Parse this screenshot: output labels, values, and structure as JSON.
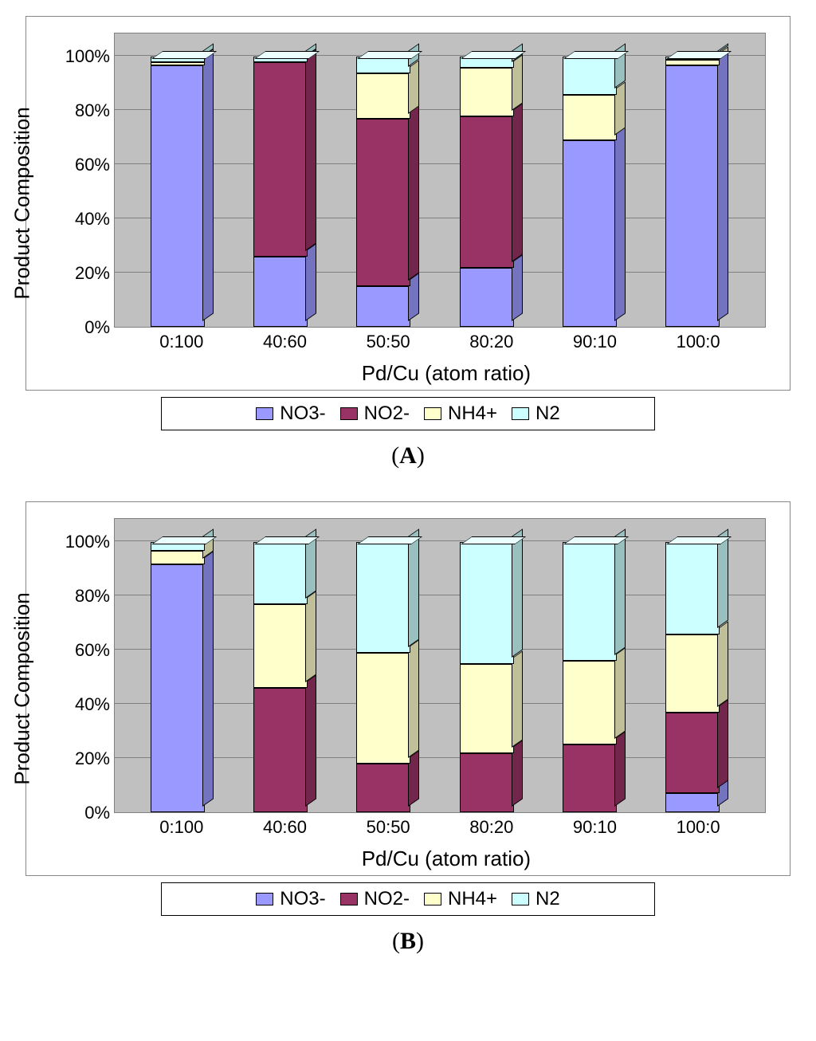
{
  "charts": [
    {
      "id": "A",
      "panel_label": "(A)",
      "ylabel": "Product Composition",
      "xlabel": "Pd/Cu (atom ratio)",
      "ytick_format": "{v}%",
      "yticks": [
        0,
        20,
        40,
        60,
        80,
        100
      ],
      "categories": [
        "0:100",
        "40:60",
        "50:50",
        "80:20",
        "90:10",
        "100:0"
      ],
      "series": [
        {
          "key": "NO3-",
          "label": "NO3-",
          "color": "#9999ff"
        },
        {
          "key": "NO2-",
          "label": "NO2-",
          "color": "#993366"
        },
        {
          "key": "NH4+",
          "label": "NH4+",
          "color": "#ffffcc"
        },
        {
          "key": "N2",
          "label": "N2",
          "color": "#ccffff"
        }
      ],
      "data": [
        {
          "NO3-": 97,
          "NO2-": 0,
          "NH4+": 1,
          "N2": 2
        },
        {
          "NO3-": 26,
          "NO2-": 72,
          "NH4+": 0,
          "N2": 2
        },
        {
          "NO3-": 15,
          "NO2-": 62,
          "NH4+": 17,
          "N2": 6
        },
        {
          "NO3-": 22,
          "NO2-": 56,
          "NH4+": 18,
          "N2": 4
        },
        {
          "NO3-": 69,
          "NO2-": 0,
          "NH4+": 17,
          "N2": 14
        },
        {
          "NO3-": 97,
          "NO2-": 0,
          "NH4+": 2,
          "N2": 1
        }
      ],
      "plot_bg": "#c0c0c0",
      "grid_color": "#808080",
      "label_fontsize": 26,
      "tick_fontsize": 22
    },
    {
      "id": "B",
      "panel_label": "(B)",
      "ylabel": "Product Composition",
      "xlabel": "Pd/Cu (atom ratio)",
      "ytick_format": "{v}%",
      "yticks": [
        0,
        20,
        40,
        60,
        80,
        100
      ],
      "categories": [
        "0:100",
        "40:60",
        "50:50",
        "80:20",
        "90:10",
        "100:0"
      ],
      "series": [
        {
          "key": "NO3-",
          "label": "NO3-",
          "color": "#9999ff"
        },
        {
          "key": "NO2-",
          "label": "NO2-",
          "color": "#993366"
        },
        {
          "key": "NH4+",
          "label": "NH4+",
          "color": "#ffffcc"
        },
        {
          "key": "N2",
          "label": "N2",
          "color": "#ccffff"
        }
      ],
      "data": [
        {
          "NO3-": 92,
          "NO2-": 0,
          "NH4+": 5,
          "N2": 3
        },
        {
          "NO3-": 0,
          "NO2-": 46,
          "NH4+": 31,
          "N2": 23
        },
        {
          "NO3-": 0,
          "NO2-": 18,
          "NH4+": 41,
          "N2": 41
        },
        {
          "NO3-": 0,
          "NO2-": 22,
          "NH4+": 33,
          "N2": 45
        },
        {
          "NO3-": 0,
          "NO2-": 25,
          "NH4+": 31,
          "N2": 44
        },
        {
          "NO3-": 7,
          "NO2-": 30,
          "NH4+": 29,
          "N2": 34
        }
      ],
      "plot_bg": "#c0c0c0",
      "grid_color": "#808080",
      "label_fontsize": 26,
      "tick_fontsize": 22
    }
  ]
}
